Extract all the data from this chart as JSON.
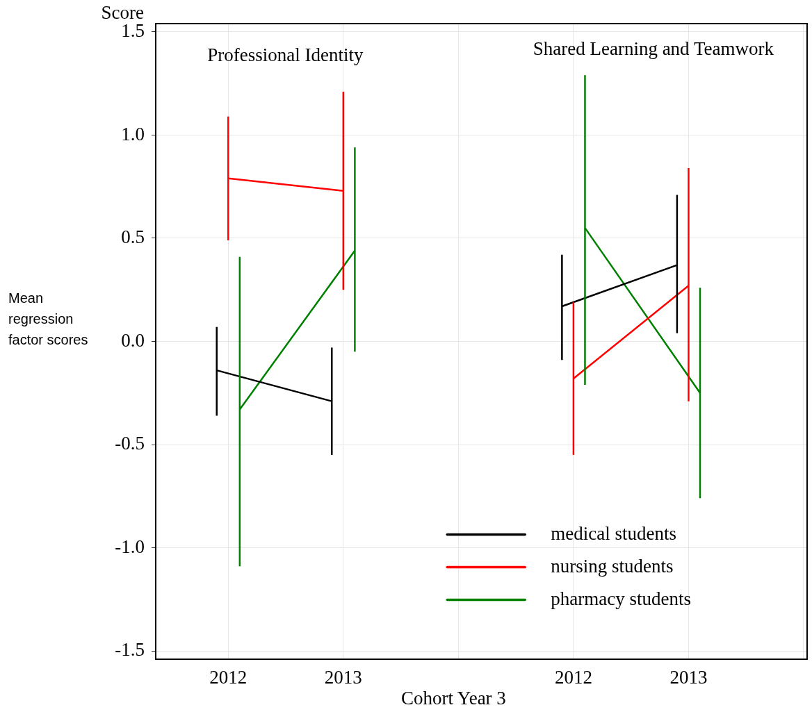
{
  "chart_data": {
    "type": "line",
    "xlabel": "Cohort Year 3",
    "ylabel": "Score",
    "annotations": [
      "Professional Identity",
      "Shared Learning and Teamwork",
      "Mean regression factor scores"
    ],
    "categories": [
      "2012",
      "2013",
      null,
      "2012",
      "2013",
      null
    ],
    "series": [
      {
        "name": "medical students",
        "color": "#000000",
        "values": [
          -0.14,
          -0.29,
          null,
          0.17,
          0.37,
          null
        ],
        "errors": [
          [
            -0.36,
            0.07
          ],
          [
            -0.55,
            -0.03
          ],
          null,
          [
            -0.09,
            0.42
          ],
          [
            0.04,
            0.71
          ],
          null
        ]
      },
      {
        "name": "nursing students",
        "color": "#ff0000",
        "values": [
          0.79,
          0.73,
          null,
          -0.18,
          0.27,
          null
        ],
        "errors": [
          [
            0.49,
            1.09
          ],
          [
            0.25,
            1.21
          ],
          null,
          [
            -0.55,
            0.19
          ],
          [
            -0.29,
            0.84
          ],
          null
        ]
      },
      {
        "name": "pharmacy students",
        "color": "#008000",
        "values": [
          -0.33,
          0.44,
          null,
          0.55,
          -0.25,
          null
        ],
        "errors": [
          [
            -1.09,
            0.41
          ],
          [
            -0.05,
            0.94
          ],
          null,
          [
            -0.21,
            1.29
          ],
          [
            -0.76,
            0.26
          ],
          null
        ]
      }
    ],
    "ylim": [
      -1.54,
      1.54
    ],
    "yticks": [
      -1.5,
      {
        "value": -1,
        "label": "-1.0"
      },
      -0.5,
      {
        "value": 0,
        "label": "0.0"
      },
      0.5,
      {
        "value": 1,
        "label": "1.0"
      },
      1.5
    ],
    "grid": true,
    "legend": "bottom right",
    "marker": "none"
  }
}
